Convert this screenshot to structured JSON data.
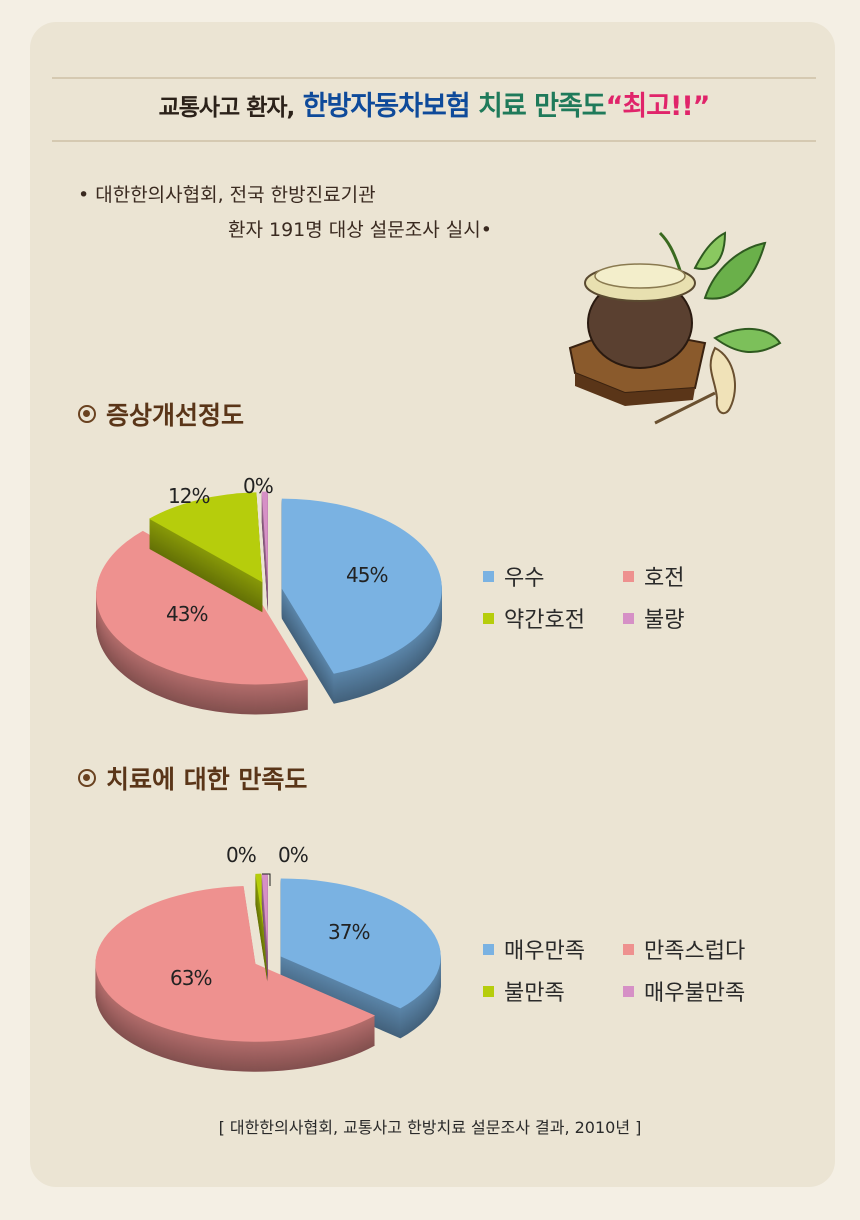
{
  "header": {
    "title_part1": "교통사고 환자,",
    "title_part2": "한방자동차보험",
    "title_part3": "치료 만족도",
    "title_part4": "“최고!!”"
  },
  "subtitle": {
    "line1": "• 대한한의사협회, 전국 한방진료기관",
    "line2": "환자 191명 대상 설문조사 실시•"
  },
  "source": "[ 대한한의사협회, 교통사고 한방치료 설문조사 결과, 2010년 ]",
  "chart_data": [
    {
      "type": "pie",
      "title": "증상개선정도",
      "categories": [
        "우수",
        "호전",
        "약간호전",
        "불량"
      ],
      "values": [
        45,
        43,
        12,
        0
      ],
      "labels": [
        "45%",
        "43%",
        "12%",
        "0%"
      ],
      "colors": [
        "#7ab2e2",
        "#ee918f",
        "#b6cd0c",
        "#d690c6"
      ],
      "legend": "right",
      "style": "3d-exploded"
    },
    {
      "type": "pie",
      "title": "치료에 대한 만족도",
      "categories": [
        "매우만족",
        "만족스럽다",
        "불만족",
        "매우불만족"
      ],
      "values": [
        37,
        63,
        0,
        0
      ],
      "labels": [
        "37%",
        "63%",
        "0%",
        "0%"
      ],
      "colors": [
        "#7ab2e2",
        "#ee918f",
        "#b6cd0c",
        "#d690c6"
      ],
      "legend": "right",
      "style": "3d-exploded"
    }
  ]
}
